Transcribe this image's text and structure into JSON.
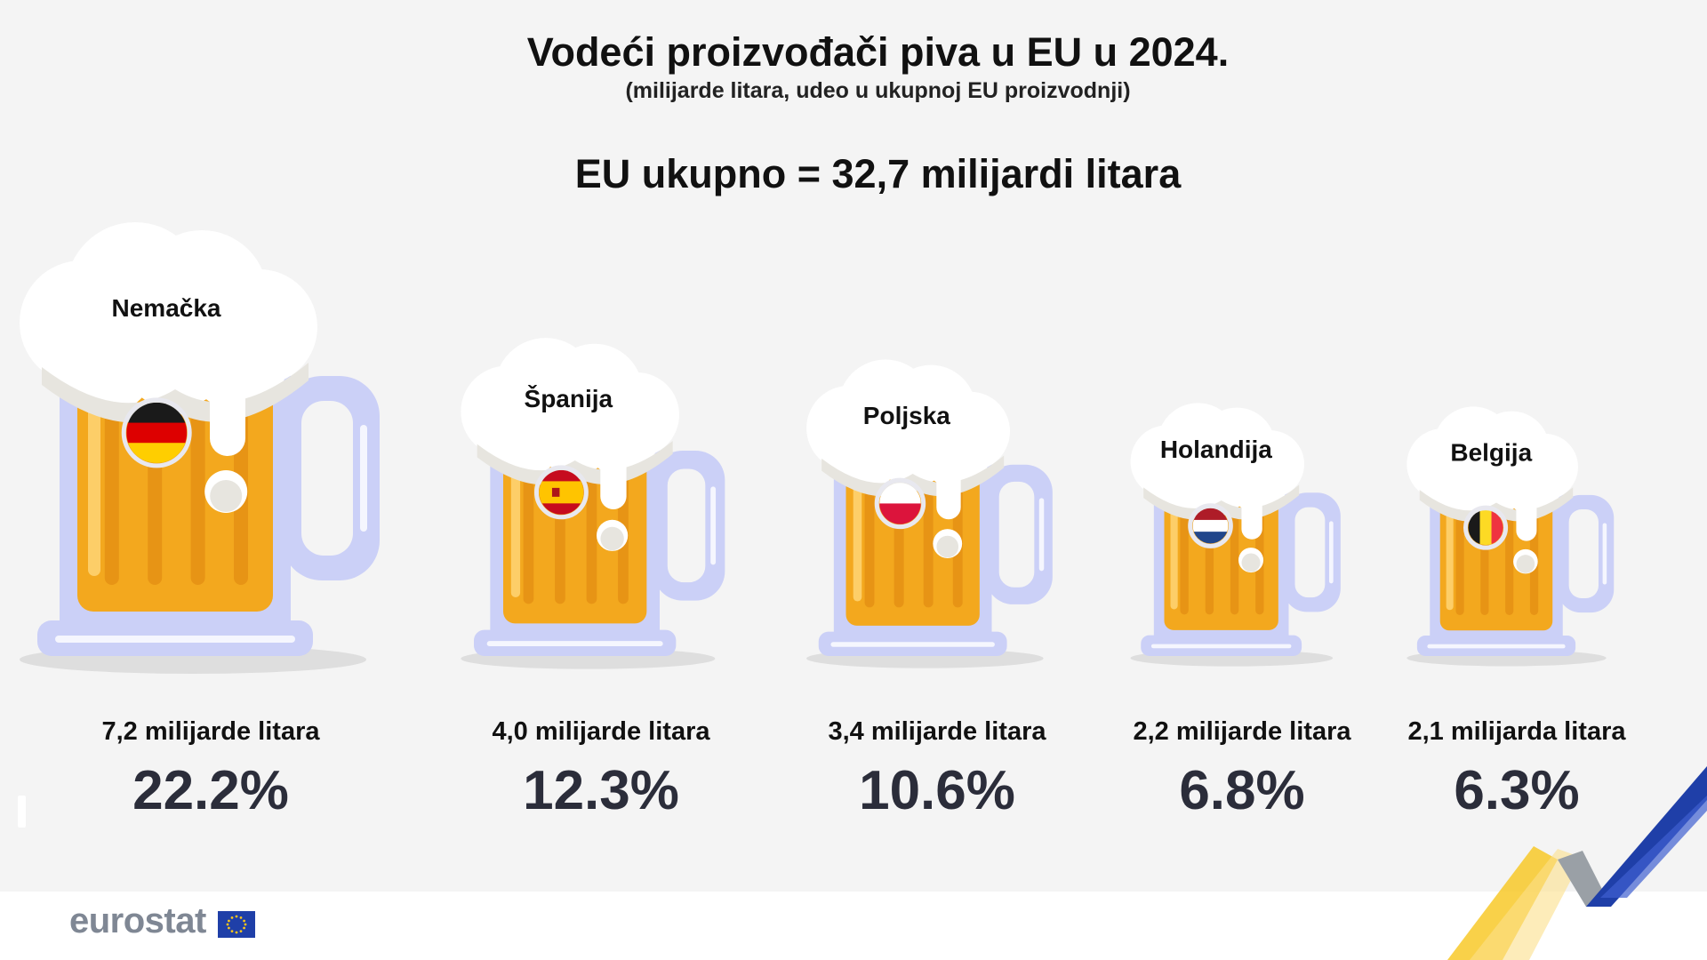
{
  "header": {
    "title": "Vodeći proizvođači piva u EU u 2024.",
    "subtitle": "(milijarde litara, udeo u ukupnoj EU proizvodnji)",
    "total": "EU ukupno = 32,7 milijardi litara"
  },
  "chart_data": {
    "type": "bar",
    "categories": [
      "Nemačka",
      "Španija",
      "Poljska",
      "Holandija",
      "Belgija"
    ],
    "volume_labels": [
      "7,2 milijarde litara",
      "4,0 milijarde litara",
      "3,4 milijarde litara",
      "2,2 milijarde litara",
      "2,1 milijarda litara"
    ],
    "values": [
      7.2,
      4.0,
      3.4,
      2.2,
      2.1
    ],
    "shares": [
      22.2,
      12.3,
      10.6,
      6.8,
      6.3
    ],
    "share_labels": [
      "22.2%",
      "12.3%",
      "10.6%",
      "6.8%",
      "6.3%"
    ],
    "flags": [
      "germany-flag-icon",
      "spain-flag-icon",
      "poland-flag-icon",
      "netherlands-flag-icon",
      "belgium-flag-icon"
    ]
  },
  "colors": {
    "beer": "#f3a81e",
    "beer_stripe": "#e38e13",
    "mug_glass": "#cbd0f7",
    "foam": "#ffffff",
    "foam_shadow": "#e7e5df",
    "text": "#111111",
    "percent": "#2b2d3a",
    "eu_blue": "#1f3fa8",
    "eu_yellow": "#f8c51c"
  },
  "logo": {
    "text": "eurostat"
  }
}
